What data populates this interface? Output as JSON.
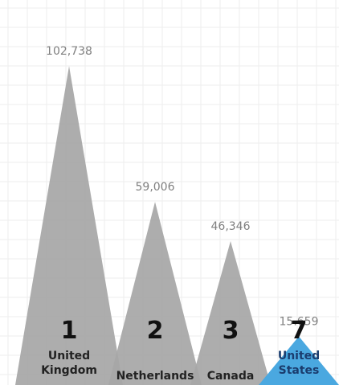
{
  "chart_data": {
    "type": "bar",
    "title": "",
    "xlabel": "",
    "ylabel": "",
    "ylim": [
      0,
      124000
    ],
    "grid": true,
    "categories": [
      [
        "United",
        "Kingdom"
      ],
      [
        "Netherlands"
      ],
      [
        "Canada"
      ],
      [
        "United",
        "States"
      ]
    ],
    "values": [
      102738,
      59006,
      46346,
      15659
    ],
    "value_labels": [
      "102,738",
      "59,006",
      "46,346",
      "15.659"
    ],
    "ranks": [
      "1",
      "2",
      "3",
      "7"
    ],
    "highlight_index": 3,
    "colors": {
      "bar": "#a6a6a6",
      "bar_highlight": "#4aa8e0",
      "grid": "#eeeeee",
      "value_text": "#7f7f7f",
      "rank_text": "#111111"
    }
  }
}
